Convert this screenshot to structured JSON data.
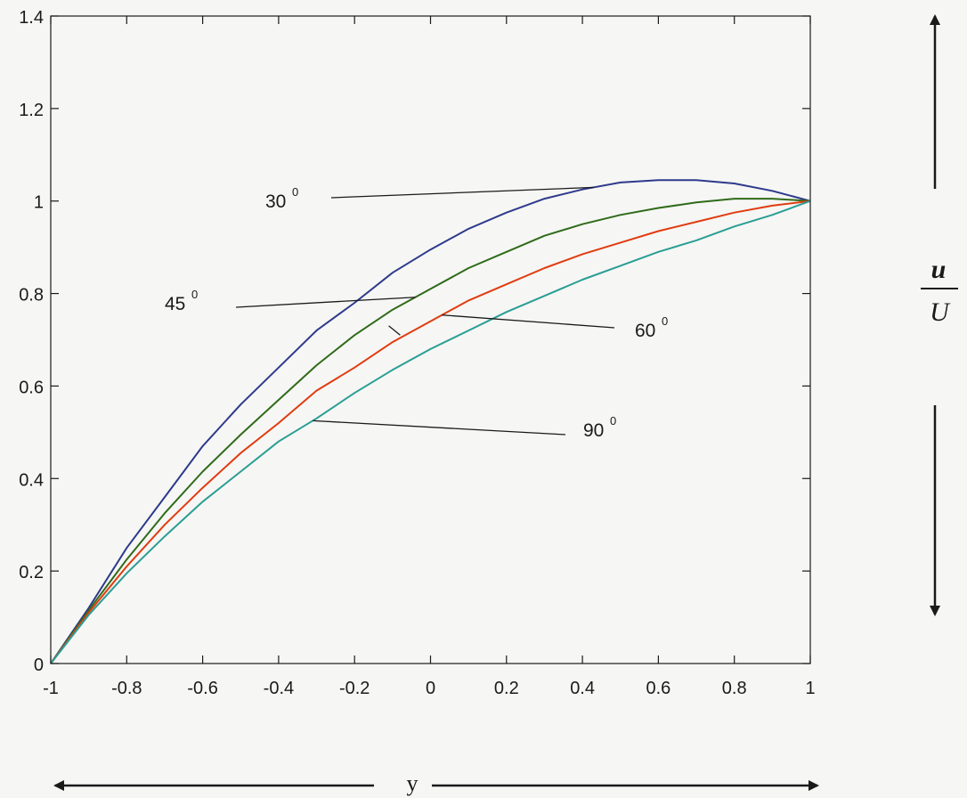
{
  "chart_data": {
    "type": "line",
    "title": "",
    "xlabel": "y",
    "ylabel_numerator": "u",
    "ylabel_denominator": "U",
    "xlim": [
      -1,
      1
    ],
    "ylim": [
      0,
      1.4
    ],
    "xticks": [
      "-1",
      "-0.8",
      "-0.6",
      "-0.4",
      "-0.2",
      "0",
      "0.2",
      "0.4",
      "0.6",
      "0.8",
      "1"
    ],
    "yticks": [
      "0",
      "0.2",
      "0.4",
      "0.6",
      "0.8",
      "1",
      "1.2",
      "1.4"
    ],
    "grid": false,
    "series": [
      {
        "name": "30",
        "color": "#2e3a8c",
        "x": [
          -1,
          -0.9,
          -0.8,
          -0.7,
          -0.6,
          -0.5,
          -0.4,
          -0.3,
          -0.2,
          -0.1,
          0,
          0.1,
          0.2,
          0.3,
          0.4,
          0.5,
          0.6,
          0.7,
          0.8,
          0.9,
          1
        ],
        "y": [
          0,
          0.12,
          0.25,
          0.36,
          0.47,
          0.56,
          0.64,
          0.72,
          0.78,
          0.845,
          0.895,
          0.94,
          0.975,
          1.005,
          1.025,
          1.04,
          1.045,
          1.045,
          1.038,
          1.022,
          1
        ]
      },
      {
        "name": "45",
        "color": "#2f6b1a",
        "x": [
          -1,
          -0.9,
          -0.8,
          -0.7,
          -0.6,
          -0.5,
          -0.4,
          -0.3,
          -0.2,
          -0.1,
          0,
          0.1,
          0.2,
          0.3,
          0.4,
          0.5,
          0.6,
          0.7,
          0.8,
          0.9,
          1
        ],
        "y": [
          0,
          0.115,
          0.225,
          0.325,
          0.415,
          0.495,
          0.57,
          0.645,
          0.71,
          0.765,
          0.81,
          0.855,
          0.89,
          0.925,
          0.95,
          0.97,
          0.985,
          0.997,
          1.005,
          1.005,
          1
        ]
      },
      {
        "name": "60",
        "color": "#e03c10",
        "x": [
          -1,
          -0.9,
          -0.8,
          -0.7,
          -0.6,
          -0.5,
          -0.4,
          -0.3,
          -0.2,
          -0.1,
          0,
          0.1,
          0.2,
          0.3,
          0.4,
          0.5,
          0.6,
          0.7,
          0.8,
          0.9,
          1
        ],
        "y": [
          0,
          0.11,
          0.21,
          0.3,
          0.38,
          0.455,
          0.52,
          0.59,
          0.64,
          0.695,
          0.74,
          0.785,
          0.82,
          0.855,
          0.885,
          0.91,
          0.935,
          0.955,
          0.975,
          0.99,
          1
        ]
      },
      {
        "name": "90",
        "color": "#2a9e94",
        "x": [
          -1,
          -0.9,
          -0.8,
          -0.7,
          -0.6,
          -0.5,
          -0.4,
          -0.3,
          -0.2,
          -0.1,
          0,
          0.1,
          0.2,
          0.3,
          0.4,
          0.5,
          0.6,
          0.7,
          0.8,
          0.9,
          1
        ],
        "y": [
          0,
          0.105,
          0.195,
          0.275,
          0.35,
          0.415,
          0.48,
          0.53,
          0.585,
          0.635,
          0.68,
          0.72,
          0.76,
          0.795,
          0.83,
          0.86,
          0.89,
          0.915,
          0.945,
          0.97,
          1
        ]
      }
    ],
    "annotations": [
      {
        "series": "30",
        "label": "30",
        "sup": "0"
      },
      {
        "series": "45",
        "label": "45",
        "sup": "0"
      },
      {
        "series": "60",
        "label": "60",
        "sup": "0"
      },
      {
        "series": "90",
        "label": "90",
        "sup": "0"
      }
    ]
  }
}
